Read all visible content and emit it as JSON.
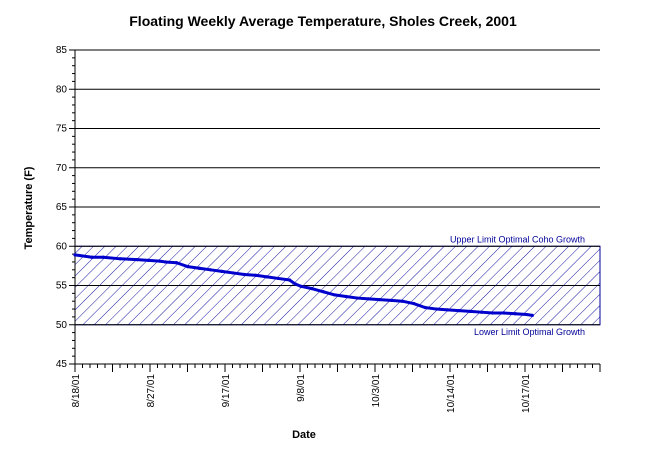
{
  "chart_data": {
    "type": "line",
    "title": "Floating Weekly Average Temperature, Sholes Creek, 2001",
    "xlabel": "Date",
    "ylabel": "Temperature (F)",
    "ylim": [
      45,
      85
    ],
    "y_ticks": [
      45,
      50,
      55,
      60,
      65,
      70,
      75,
      80,
      85
    ],
    "x_tick_labels": [
      "8/18/01",
      "8/27/01",
      "9/17/01",
      "9/8/01",
      "10/3/01",
      "10/14/01",
      "10/17/01"
    ],
    "grid": "horizontal",
    "bands": [
      {
        "name": "Upper Limit Optimal Coho Growth",
        "value": 60
      },
      {
        "name": "Lower Limit Optimal Growth",
        "value": 50
      }
    ],
    "band_fill": "diagonal-hatch",
    "series": [
      {
        "x_index": [
          0,
          3,
          5,
          8,
          11,
          13,
          15,
          16,
          18,
          20,
          22,
          24,
          26,
          28,
          30,
          32,
          34,
          36,
          38,
          39,
          40,
          42,
          44,
          46,
          48,
          50,
          52,
          54,
          56,
          58,
          60,
          62,
          64,
          66,
          68,
          70,
          72,
          74,
          76,
          78,
          80,
          81
        ],
        "values": [
          58.9,
          58.6,
          58.6,
          58.4,
          58.3,
          58.2,
          58.1,
          58.0,
          57.9,
          57.4,
          57.2,
          57.0,
          56.8,
          56.6,
          56.4,
          56.3,
          56.1,
          55.9,
          55.7,
          55.2,
          54.9,
          54.6,
          54.2,
          53.8,
          53.6,
          53.4,
          53.3,
          53.2,
          53.1,
          53.0,
          52.7,
          52.2,
          52.0,
          51.9,
          51.8,
          51.7,
          51.6,
          51.5,
          51.5,
          51.4,
          51.3,
          51.2
        ]
      }
    ],
    "x_index_max": 93,
    "colors": {
      "line": "#0000cc",
      "band": "#000099",
      "grid": "#000000"
    }
  }
}
